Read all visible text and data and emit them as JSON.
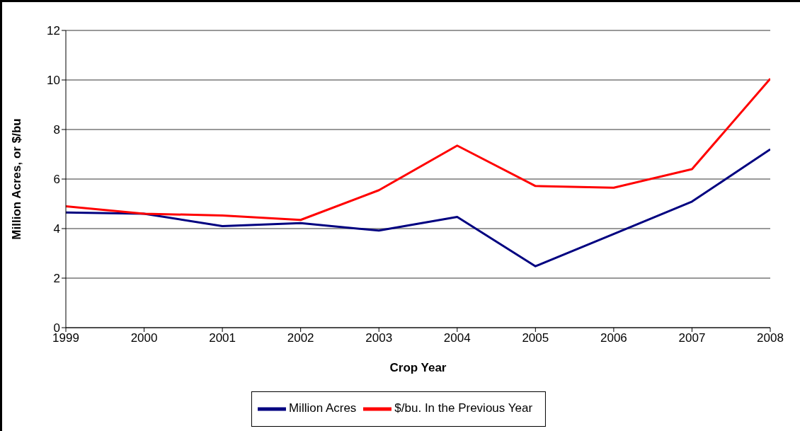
{
  "chart_data": {
    "type": "line",
    "xlabel": "Crop Year",
    "ylabel": "Million Acres, or $/bu",
    "x": [
      1999,
      2000,
      2001,
      2002,
      2003,
      2004,
      2005,
      2006,
      2007,
      2008
    ],
    "series": [
      {
        "name": "Million Acres",
        "color": "#000080",
        "values": [
          4.65,
          4.6,
          4.1,
          4.22,
          3.92,
          4.47,
          2.48,
          3.78,
          5.09,
          7.2
        ]
      },
      {
        "name": "$/bu. In the Previous Year",
        "color": "#ff0000",
        "values": [
          4.9,
          4.6,
          4.53,
          4.35,
          5.55,
          7.35,
          5.72,
          5.65,
          6.4,
          10.05
        ]
      }
    ],
    "xlim": [
      1999,
      2008
    ],
    "xticks": [
      1999,
      2000,
      2001,
      2002,
      2003,
      2004,
      2005,
      2006,
      2007,
      2008
    ],
    "ylim": [
      0,
      12
    ],
    "yticks": [
      0,
      2,
      4,
      6,
      8,
      10,
      12
    ],
    "grid": "y",
    "legend": "bottom",
    "marker": "none",
    "line_style": "solid"
  }
}
